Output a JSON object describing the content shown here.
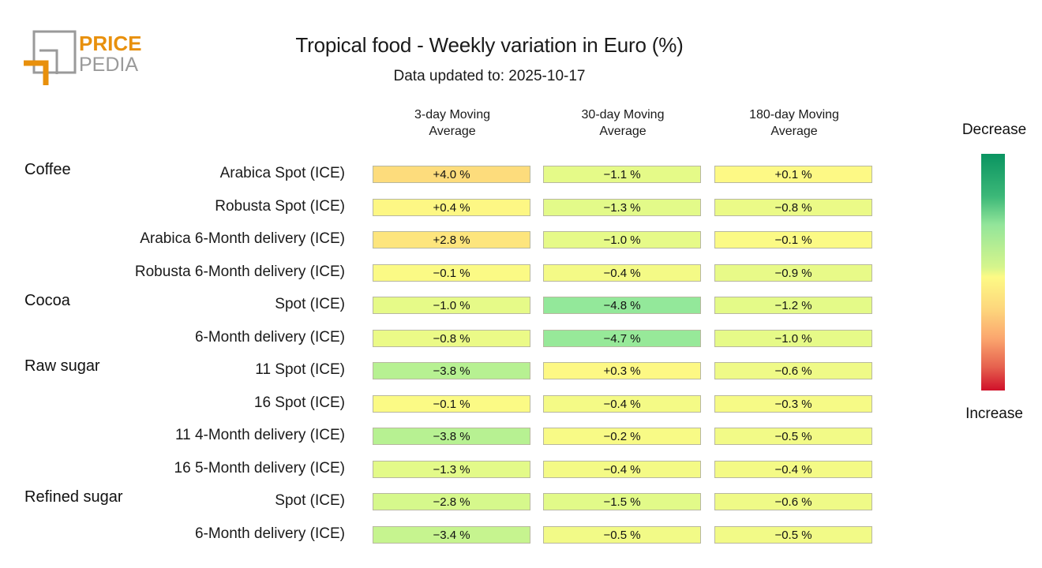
{
  "logo": {
    "line1": "PRICE",
    "line2": "PEDIA",
    "accent_color": "#e8900c",
    "gray_color": "#9a9a9a"
  },
  "chart_data": {
    "type": "heatmap",
    "title": "Tropical food - Weekly variation in Euro (%)",
    "subtitle": "Data updated to: 2025-10-17",
    "columns": [
      "3-day Moving Average",
      "30-day Moving Average",
      "180-day Moving Average"
    ],
    "column_lines": [
      [
        "3-day Moving",
        "Average"
      ],
      [
        "30-day Moving",
        "Average"
      ],
      [
        "180-day Moving",
        "Average"
      ]
    ],
    "unit": "%",
    "legend": {
      "top": "Decrease",
      "bottom": "Increase",
      "top_color": "#0a9461",
      "mid_color": "#fdfa85",
      "bottom_color": "#d0102a"
    },
    "rows": [
      {
        "group": "Coffee",
        "label": "Arabica Spot (ICE)",
        "values": [
          4.0,
          -1.1,
          0.1
        ]
      },
      {
        "group": "",
        "label": "Robusta Spot (ICE)",
        "values": [
          0.4,
          -1.3,
          -0.8
        ]
      },
      {
        "group": "",
        "label": "Arabica 6-Month delivery (ICE)",
        "values": [
          2.8,
          -1.0,
          -0.1
        ]
      },
      {
        "group": "",
        "label": "Robusta 6-Month delivery (ICE)",
        "values": [
          -0.1,
          -0.4,
          -0.9
        ]
      },
      {
        "group": "Cocoa",
        "label": "Spot (ICE)",
        "values": [
          -1.0,
          -4.8,
          -1.2
        ]
      },
      {
        "group": "",
        "label": "6-Month delivery (ICE)",
        "values": [
          -0.8,
          -4.7,
          -1.0
        ]
      },
      {
        "group": "Raw sugar",
        "label": "11 Spot (ICE)",
        "values": [
          -3.8,
          0.3,
          -0.6
        ]
      },
      {
        "group": "",
        "label": "16 Spot (ICE)",
        "values": [
          -0.1,
          -0.4,
          -0.3
        ]
      },
      {
        "group": "",
        "label": "11 4-Month delivery (ICE)",
        "values": [
          -3.8,
          -0.2,
          -0.5
        ]
      },
      {
        "group": "",
        "label": "16 5-Month delivery (ICE)",
        "values": [
          -1.3,
          -0.4,
          -0.4
        ]
      },
      {
        "group": "Refined sugar",
        "label": "Spot (ICE)",
        "values": [
          -2.8,
          -1.5,
          -0.6
        ]
      },
      {
        "group": "",
        "label": "6-Month delivery (ICE)",
        "values": [
          -3.4,
          -0.5,
          -0.5
        ]
      }
    ]
  }
}
